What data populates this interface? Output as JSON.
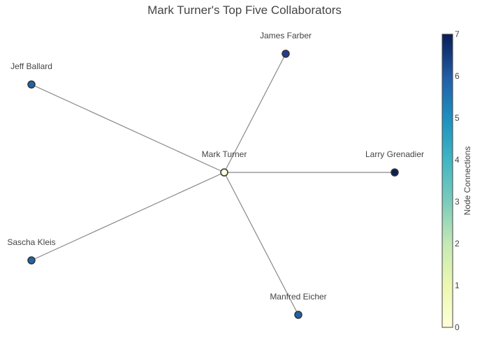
{
  "title": "Mark Turner's Top Five Collaborators",
  "colorbar": {
    "title": "Node Connections",
    "min": 0,
    "max": 7,
    "ticks": [
      "0",
      "1",
      "2",
      "3",
      "4",
      "5",
      "6",
      "7"
    ]
  },
  "nodes": [
    {
      "id": "center",
      "label": "Mark Turner",
      "connections": 0,
      "color": "#ffffd9"
    },
    {
      "id": "james",
      "label": "James Farber",
      "connections": 6,
      "color": "#263a96"
    },
    {
      "id": "jeff",
      "label": "Jeff Ballard",
      "connections": 5,
      "color": "#2163a9"
    },
    {
      "id": "larry",
      "label": "Larry Grenadier",
      "connections": 7,
      "color": "#0f1f55"
    },
    {
      "id": "sascha",
      "label": "Sascha Kleis",
      "connections": 5,
      "color": "#2264aa"
    },
    {
      "id": "manfred",
      "label": "Manfred Eicher",
      "connections": 5,
      "color": "#2162a8"
    }
  ],
  "edges": [
    {
      "from": "center",
      "to": "james"
    },
    {
      "from": "center",
      "to": "jeff"
    },
    {
      "from": "center",
      "to": "larry"
    },
    {
      "from": "center",
      "to": "sascha"
    },
    {
      "from": "center",
      "to": "manfred"
    }
  ]
}
